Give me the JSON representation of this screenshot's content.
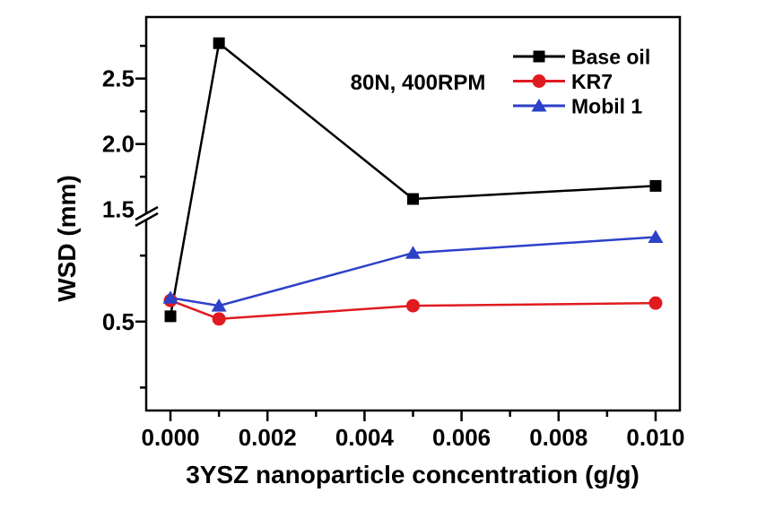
{
  "figure": {
    "background": "#ffffff",
    "axis_color": "#000000"
  },
  "chart_data": {
    "type": "line",
    "title": "",
    "annotation": "80N,  400RPM",
    "xlabel": "3YSZ nanoparticle concentration (g/g)",
    "ylabel": "WSD (mm)",
    "x": [
      0.0,
      0.001,
      0.005,
      0.01
    ],
    "series": [
      {
        "name": "Base oil",
        "color": "#000000",
        "marker": "square",
        "values": [
          0.52,
          2.77,
          1.58,
          1.68
        ]
      },
      {
        "name": "KR7",
        "color": "#e01b20",
        "marker": "circle",
        "values": [
          0.58,
          0.51,
          0.56,
          0.57
        ]
      },
      {
        "name": "Mobil 1",
        "color": "#2d41c8",
        "marker": "triangle",
        "values": [
          0.59,
          0.56,
          0.76,
          0.82
        ]
      }
    ],
    "x_axis": {
      "range": [
        -0.0005,
        0.0105
      ],
      "major_ticks": [
        {
          "value": 0.0,
          "label": "0.000"
        },
        {
          "value": 0.002,
          "label": "0.002"
        },
        {
          "value": 0.004,
          "label": "0.004"
        },
        {
          "value": 0.006,
          "label": "0.006"
        },
        {
          "value": 0.008,
          "label": "0.008"
        },
        {
          "value": 0.01,
          "label": "0.010"
        }
      ],
      "minor_ticks": [
        0.001,
        0.003,
        0.005,
        0.007,
        0.009
      ]
    },
    "y_axis": {
      "break": {
        "from": 0.9,
        "to": 1.45
      },
      "lower_range": [
        0.163,
        0.9
      ],
      "upper_range": [
        1.45,
        2.97
      ],
      "major_ticks": [
        {
          "value": 0.5,
          "label": "0.5",
          "tick": true
        },
        {
          "value": 1.5,
          "label": "1.5",
          "tick": false
        },
        {
          "value": 2.0,
          "label": "2.0",
          "tick": true
        },
        {
          "value": 2.5,
          "label": "2.5",
          "tick": true
        }
      ],
      "minor_ticks": [
        0.25,
        0.75,
        1.75,
        2.25,
        2.75
      ]
    },
    "legend": {
      "position": "top-right",
      "entries": [
        "Base oil",
        "KR7",
        "Mobil 1"
      ]
    },
    "grid": false
  }
}
